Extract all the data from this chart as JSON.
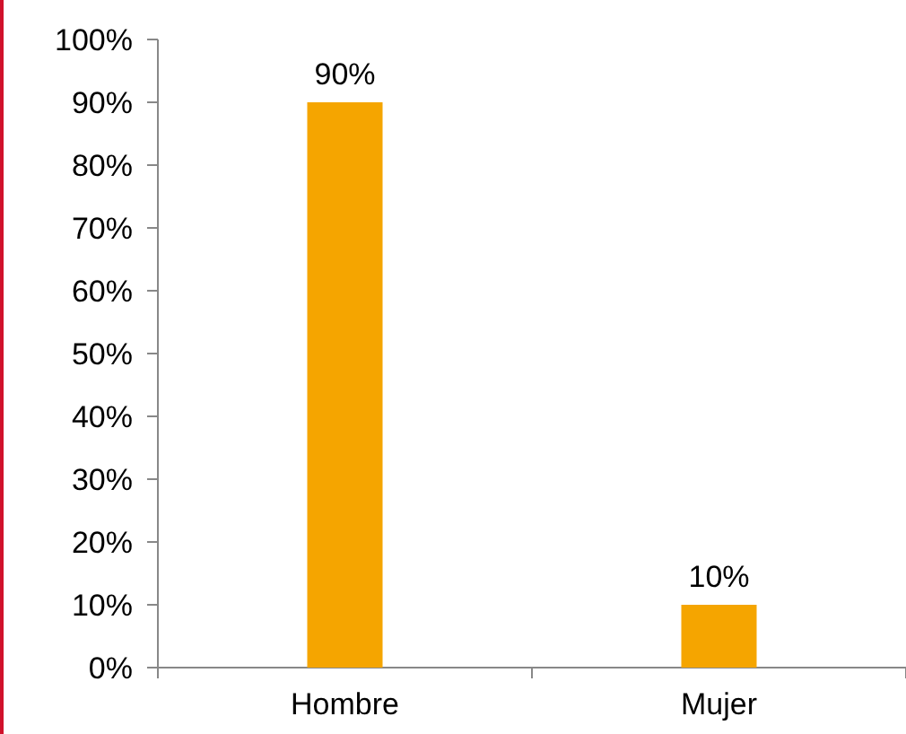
{
  "chart_data": {
    "type": "bar",
    "categories": [
      "Hombre",
      "Mujer"
    ],
    "values": [
      90,
      10
    ],
    "color": "#f5a500",
    "value_labels": [
      "90%",
      "10%"
    ],
    "ylim": [
      0,
      100
    ],
    "yticks": [
      {
        "value": 0,
        "label": "0%"
      },
      {
        "value": 10,
        "label": "10%"
      },
      {
        "value": 20,
        "label": "20%"
      },
      {
        "value": 30,
        "label": "30%"
      },
      {
        "value": 40,
        "label": "40%"
      },
      {
        "value": 50,
        "label": "50%"
      },
      {
        "value": 60,
        "label": "60%"
      },
      {
        "value": 70,
        "label": "70%"
      },
      {
        "value": 80,
        "label": "80%"
      },
      {
        "value": 90,
        "label": "90%"
      },
      {
        "value": 100,
        "label": "100%"
      }
    ],
    "grid": false
  }
}
